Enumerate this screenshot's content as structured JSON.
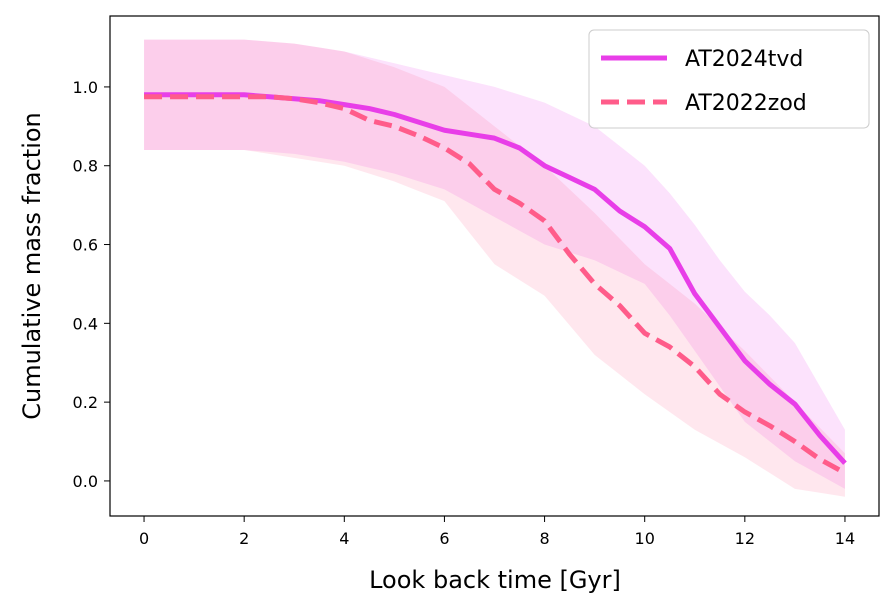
{
  "chart_data": {
    "type": "line",
    "xlabel": "Look back time [Gyr]",
    "ylabel": "Cumulative mass fraction",
    "x": [
      0,
      0.5,
      1,
      1.5,
      2,
      2.5,
      3,
      3.5,
      4,
      4.5,
      5,
      5.5,
      6,
      6.5,
      7,
      7.5,
      8,
      8.5,
      9,
      9.5,
      10,
      10.5,
      11,
      11.5,
      12,
      12.5,
      13,
      13.5,
      14
    ],
    "series": [
      {
        "name": "AT2024tvd",
        "color": "#e83ee8",
        "dash": false,
        "values": [
          0.98,
          0.98,
          0.98,
          0.98,
          0.98,
          0.975,
          0.97,
          0.965,
          0.955,
          0.945,
          0.93,
          0.91,
          0.89,
          0.88,
          0.87,
          0.845,
          0.8,
          0.77,
          0.74,
          0.685,
          0.645,
          0.59,
          0.475,
          0.39,
          0.305,
          0.245,
          0.195,
          0.115,
          0.045
        ],
        "upper": [
          1.12,
          1.12,
          1.12,
          1.12,
          1.12,
          1.115,
          1.11,
          1.1,
          1.09,
          1.075,
          1.06,
          1.045,
          1.03,
          1.015,
          1.0,
          0.98,
          0.96,
          0.93,
          0.9,
          0.85,
          0.8,
          0.73,
          0.65,
          0.56,
          0.48,
          0.42,
          0.35,
          0.24,
          0.13
        ],
        "lower": [
          0.84,
          0.84,
          0.84,
          0.84,
          0.84,
          0.835,
          0.83,
          0.82,
          0.81,
          0.795,
          0.78,
          0.76,
          0.74,
          0.705,
          0.67,
          0.635,
          0.6,
          0.58,
          0.56,
          0.53,
          0.5,
          0.42,
          0.33,
          0.24,
          0.15,
          0.1,
          0.05,
          0.015,
          -0.02
        ]
      },
      {
        "name": "AT2022zod",
        "color": "#ff5c8a",
        "dash": true,
        "values": [
          0.975,
          0.975,
          0.975,
          0.975,
          0.975,
          0.975,
          0.97,
          0.96,
          0.945,
          0.915,
          0.9,
          0.875,
          0.845,
          0.805,
          0.74,
          0.705,
          0.66,
          0.575,
          0.5,
          0.445,
          0.375,
          0.34,
          0.29,
          0.22,
          0.175,
          0.14,
          0.1,
          0.055,
          0.02
        ],
        "upper": [
          1.12,
          1.12,
          1.12,
          1.12,
          1.12,
          1.115,
          1.11,
          1.1,
          1.09,
          1.07,
          1.05,
          1.025,
          1.0,
          0.95,
          0.9,
          0.85,
          0.8,
          0.74,
          0.68,
          0.615,
          0.55,
          0.5,
          0.45,
          0.39,
          0.33,
          0.265,
          0.2,
          0.135,
          0.07
        ],
        "lower": [
          0.84,
          0.84,
          0.84,
          0.84,
          0.84,
          0.83,
          0.82,
          0.81,
          0.8,
          0.78,
          0.76,
          0.735,
          0.71,
          0.63,
          0.55,
          0.51,
          0.47,
          0.395,
          0.32,
          0.27,
          0.22,
          0.175,
          0.13,
          0.095,
          0.06,
          0.02,
          -0.02,
          -0.03,
          -0.04
        ]
      }
    ],
    "xlim": [
      -0.68,
      14.68
    ],
    "ylim": [
      -0.089,
      1.18
    ],
    "xticks": [
      0,
      2,
      4,
      6,
      8,
      10,
      12,
      14
    ],
    "yticks": [
      {
        "value": 0,
        "label": "0.0"
      },
      {
        "value": 0.2,
        "label": "0.2"
      },
      {
        "value": 0.4,
        "label": "0.4"
      },
      {
        "value": 0.6,
        "label": "0.6"
      },
      {
        "value": 0.8,
        "label": "0.8"
      },
      {
        "value": 1,
        "label": "1.0"
      }
    ],
    "legend": "upper right",
    "grid": false
  }
}
